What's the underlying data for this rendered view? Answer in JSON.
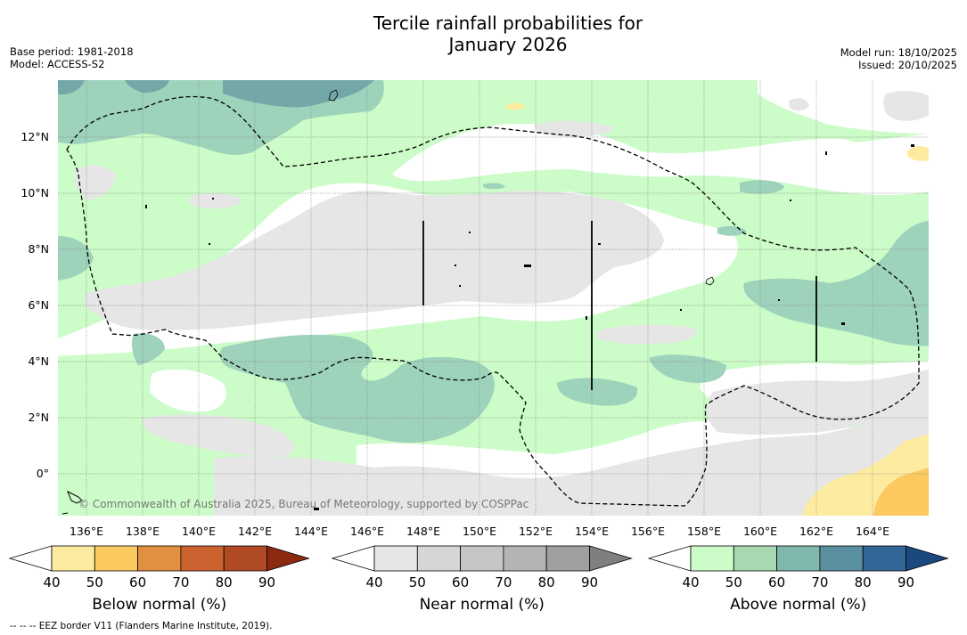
{
  "title": {
    "line1": "Tercile rainfall probabilities for",
    "line2": "January 2026"
  },
  "meta_left": {
    "base_period": "Base period: 1981-2018",
    "model": "Model: ACCESS-S2"
  },
  "meta_right": {
    "model_run": "Model run: 18/10/2025",
    "issued": "Issued: 20/10/2025"
  },
  "map": {
    "lon_range": [
      135,
      166
    ],
    "lat_range": [
      -1.5,
      14
    ],
    "lon_ticks": [
      "136°E",
      "138°E",
      "140°E",
      "142°E",
      "144°E",
      "146°E",
      "148°E",
      "150°E",
      "152°E",
      "154°E",
      "156°E",
      "158°E",
      "160°E",
      "162°E",
      "164°E"
    ],
    "lat_ticks": [
      "0°",
      "2°N",
      "4°N",
      "6°N",
      "8°N",
      "10°N",
      "12°N"
    ],
    "copyright": "© Commonwealth of Australia 2025, Bureau of Meteorology, supported by COSPPac"
  },
  "legends": [
    {
      "label": "Below normal (%)",
      "ticks": [
        "40",
        "50",
        "60",
        "70",
        "80",
        "90"
      ],
      "colors": [
        "#ffffff",
        "#fdeca0",
        "#fcc860",
        "#e09040",
        "#cc6230",
        "#b04a24",
        "#8c2a10"
      ]
    },
    {
      "label": "Near normal (%)",
      "ticks": [
        "40",
        "50",
        "60",
        "70",
        "80",
        "90"
      ],
      "colors": [
        "#ffffff",
        "#e6e6e6",
        "#d6d6d6",
        "#c6c6c6",
        "#b4b4b4",
        "#a0a0a0",
        "#7f7f7f"
      ]
    },
    {
      "label": "Above normal (%)",
      "ticks": [
        "40",
        "50",
        "60",
        "70",
        "80",
        "90"
      ],
      "colors": [
        "#ffffff",
        "#ccfcc8",
        "#a8d8b2",
        "#80b8ae",
        "#5a90a0",
        "#336696",
        "#1c4880"
      ]
    }
  ],
  "footnote": "-- -- -- EEZ border V11 (Flanders Marine Institute, 2019).",
  "colors": {
    "above_50": "#ccfcc8",
    "above_60": "#9dd2bb",
    "above_70": "#74a8a8",
    "near_50": "#e6e6e6",
    "below_50": "#fdeca0",
    "below_60": "#fcc860"
  }
}
